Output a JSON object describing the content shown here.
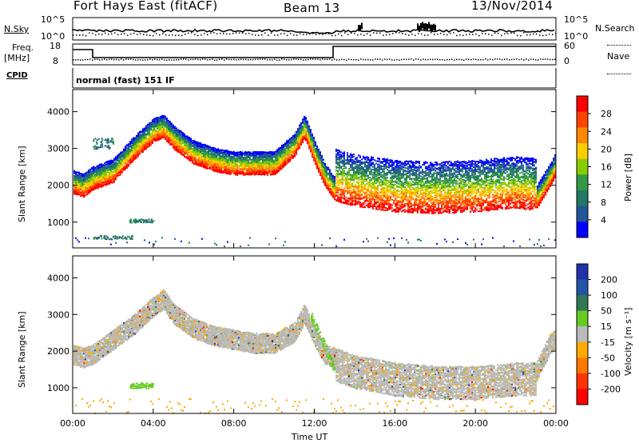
{
  "header": {
    "radar": "Fort Hays East (fitACF)",
    "beam": "Beam 13",
    "date": "13/Nov/2014"
  },
  "panels": {
    "nsky": {
      "label": "N.Sky",
      "right_label": "N.Search",
      "ticks_left": [
        "10^5",
        "10^0"
      ],
      "ticks_right": [
        "10^5",
        "10^0"
      ]
    },
    "freq": {
      "label": "Freq.",
      "unit": "[MHz]",
      "ticks_left": [
        "18",
        "8"
      ],
      "ticks_right": [
        "60",
        "0"
      ],
      "right_label": "Nave"
    },
    "cpid": {
      "label": "CPID",
      "mode": "normal (fast) 151 IF"
    }
  },
  "axes": {
    "x_label": "Time UT",
    "x_ticks": [
      "00:00",
      "04:00",
      "08:00",
      "12:00",
      "16:00",
      "20:00",
      "00:00"
    ],
    "y_label": "Slant Range [km]",
    "y_ticks": [
      "1000",
      "2000",
      "3000",
      "4000"
    ]
  },
  "colorbars": {
    "power": {
      "label": "Power [dB]",
      "ticks": [
        "28",
        "24",
        "20",
        "16",
        "12",
        "8",
        "4"
      ],
      "colors": [
        "#ff0000",
        "#ff4400",
        "#ff8800",
        "#ffcc00",
        "#88cc00",
        "#339944",
        "#227766",
        "#225599",
        "#0000ff"
      ]
    },
    "velocity": {
      "label": "Velocity [m s⁻¹]",
      "ticks": [
        "200",
        "100",
        "50",
        "15",
        "-15",
        "-50",
        "-100",
        "-200"
      ],
      "colors": [
        "#2233aa",
        "#2255aa",
        "#337755",
        "#66cc22",
        "#bbbbbb",
        "#ffaa00",
        "#ff7700",
        "#ff3300",
        "#ff0000"
      ]
    }
  },
  "chart_data": [
    {
      "type": "heatmap",
      "title": "",
      "xlabel": "Time UT",
      "ylabel": "Slant Range [km]",
      "xlim": [
        0,
        24
      ],
      "ylim": [
        300,
        4600
      ],
      "zlabel": "Power [dB]",
      "zlim": [
        0,
        32
      ],
      "ridge": {
        "x": [
          0,
          0.5,
          1,
          2,
          3,
          4,
          4.5,
          5,
          6,
          7,
          8,
          9,
          10,
          11,
          11.5,
          12,
          12.5,
          13,
          14,
          16,
          18,
          20,
          22,
          23,
          23.7,
          24
        ],
        "y": [
          1800,
          1700,
          1900,
          2100,
          2700,
          3200,
          3300,
          3000,
          2600,
          2400,
          2300,
          2300,
          2300,
          2800,
          3300,
          2600,
          2000,
          1600,
          1450,
          1300,
          1250,
          1300,
          1400,
          1350,
          2000,
          2300
        ]
      },
      "patches": [
        {
          "x": [
            1.0,
            2.0
          ],
          "y": [
            3000,
            3300
          ]
        },
        {
          "x": [
            2.8,
            4.0
          ],
          "y": [
            1000,
            1100
          ]
        },
        {
          "x": [
            1.0,
            3.0
          ],
          "y": [
            550,
            650
          ]
        }
      ]
    },
    {
      "type": "heatmap",
      "title": "",
      "xlabel": "Time UT",
      "ylabel": "Slant Range [km]",
      "xlim": [
        0,
        24
      ],
      "ylim": [
        300,
        4600
      ],
      "zlabel": "Velocity [m s⁻¹]",
      "zlim": [
        -250,
        250
      ],
      "ridge": {
        "x": [
          0,
          0.5,
          1,
          2,
          3,
          4,
          4.5,
          5,
          6,
          7,
          8,
          9,
          10,
          11,
          11.5,
          12,
          12.5,
          13,
          14,
          16,
          18,
          20,
          22,
          23,
          23.7,
          24
        ],
        "y": [
          2200,
          2100,
          2200,
          2600,
          3000,
          3500,
          3700,
          3300,
          2900,
          2700,
          2600,
          2500,
          2500,
          2800,
          3300,
          2700,
          2200,
          2100,
          1900,
          1700,
          1600,
          1600,
          1700,
          1700,
          2500,
          2600
        ]
      },
      "patches": [
        {
          "x": [
            11.8,
            13.0
          ],
          "y": [
            1500,
            3000
          ]
        },
        {
          "x": [
            2.8,
            4.0
          ],
          "y": [
            1000,
            1150
          ]
        }
      ]
    }
  ]
}
